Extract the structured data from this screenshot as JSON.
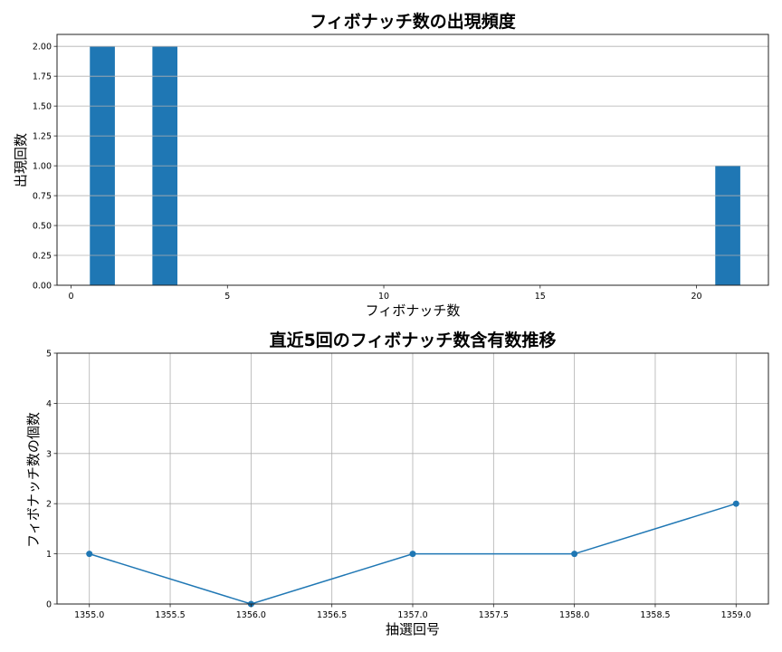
{
  "chart_data": [
    {
      "type": "bar",
      "title": "フィボナッチ数の出現頻度",
      "xlabel": "フィボナッチ数",
      "ylabel": "出現回数",
      "categories": [
        1,
        3,
        21
      ],
      "values": [
        2,
        2,
        1
      ],
      "bar_width": 0.8,
      "xlim": [
        -0.45,
        22.3
      ],
      "ylim": [
        0,
        2.1
      ],
      "xticks": [
        "0",
        "5",
        "10",
        "15",
        "20"
      ],
      "yticks": [
        "0.00",
        "0.25",
        "0.50",
        "0.75",
        "1.00",
        "1.25",
        "1.50",
        "1.75",
        "2.00"
      ],
      "grid": "y",
      "color": "#1f77b4"
    },
    {
      "type": "line",
      "title": "直近5回のフィボナッチ数含有数推移",
      "xlabel": "抽選回号",
      "ylabel": "フィボナッチ数の個数",
      "x": [
        1355,
        1356,
        1357,
        1358,
        1359
      ],
      "values": [
        1,
        0,
        1,
        1,
        2
      ],
      "xlim": [
        1354.8,
        1359.2
      ],
      "ylim": [
        0,
        5
      ],
      "xticks": [
        "1355.0",
        "1355.5",
        "1356.0",
        "1356.5",
        "1357.0",
        "1357.5",
        "1358.0",
        "1358.5",
        "1359.0"
      ],
      "yticks": [
        "0",
        "1",
        "2",
        "3",
        "4",
        "5"
      ],
      "grid": "both",
      "marker": "circle",
      "color": "#1f77b4"
    }
  ],
  "chart1": {
    "title": "フィボナッチ数の出現頻度",
    "xlabel": "フィボナッチ数",
    "ylabel": "出現回数"
  },
  "chart2": {
    "title": "直近5回のフィボナッチ数含有数推移",
    "xlabel": "抽選回号",
    "ylabel": "フィボナッチ数の個数"
  }
}
